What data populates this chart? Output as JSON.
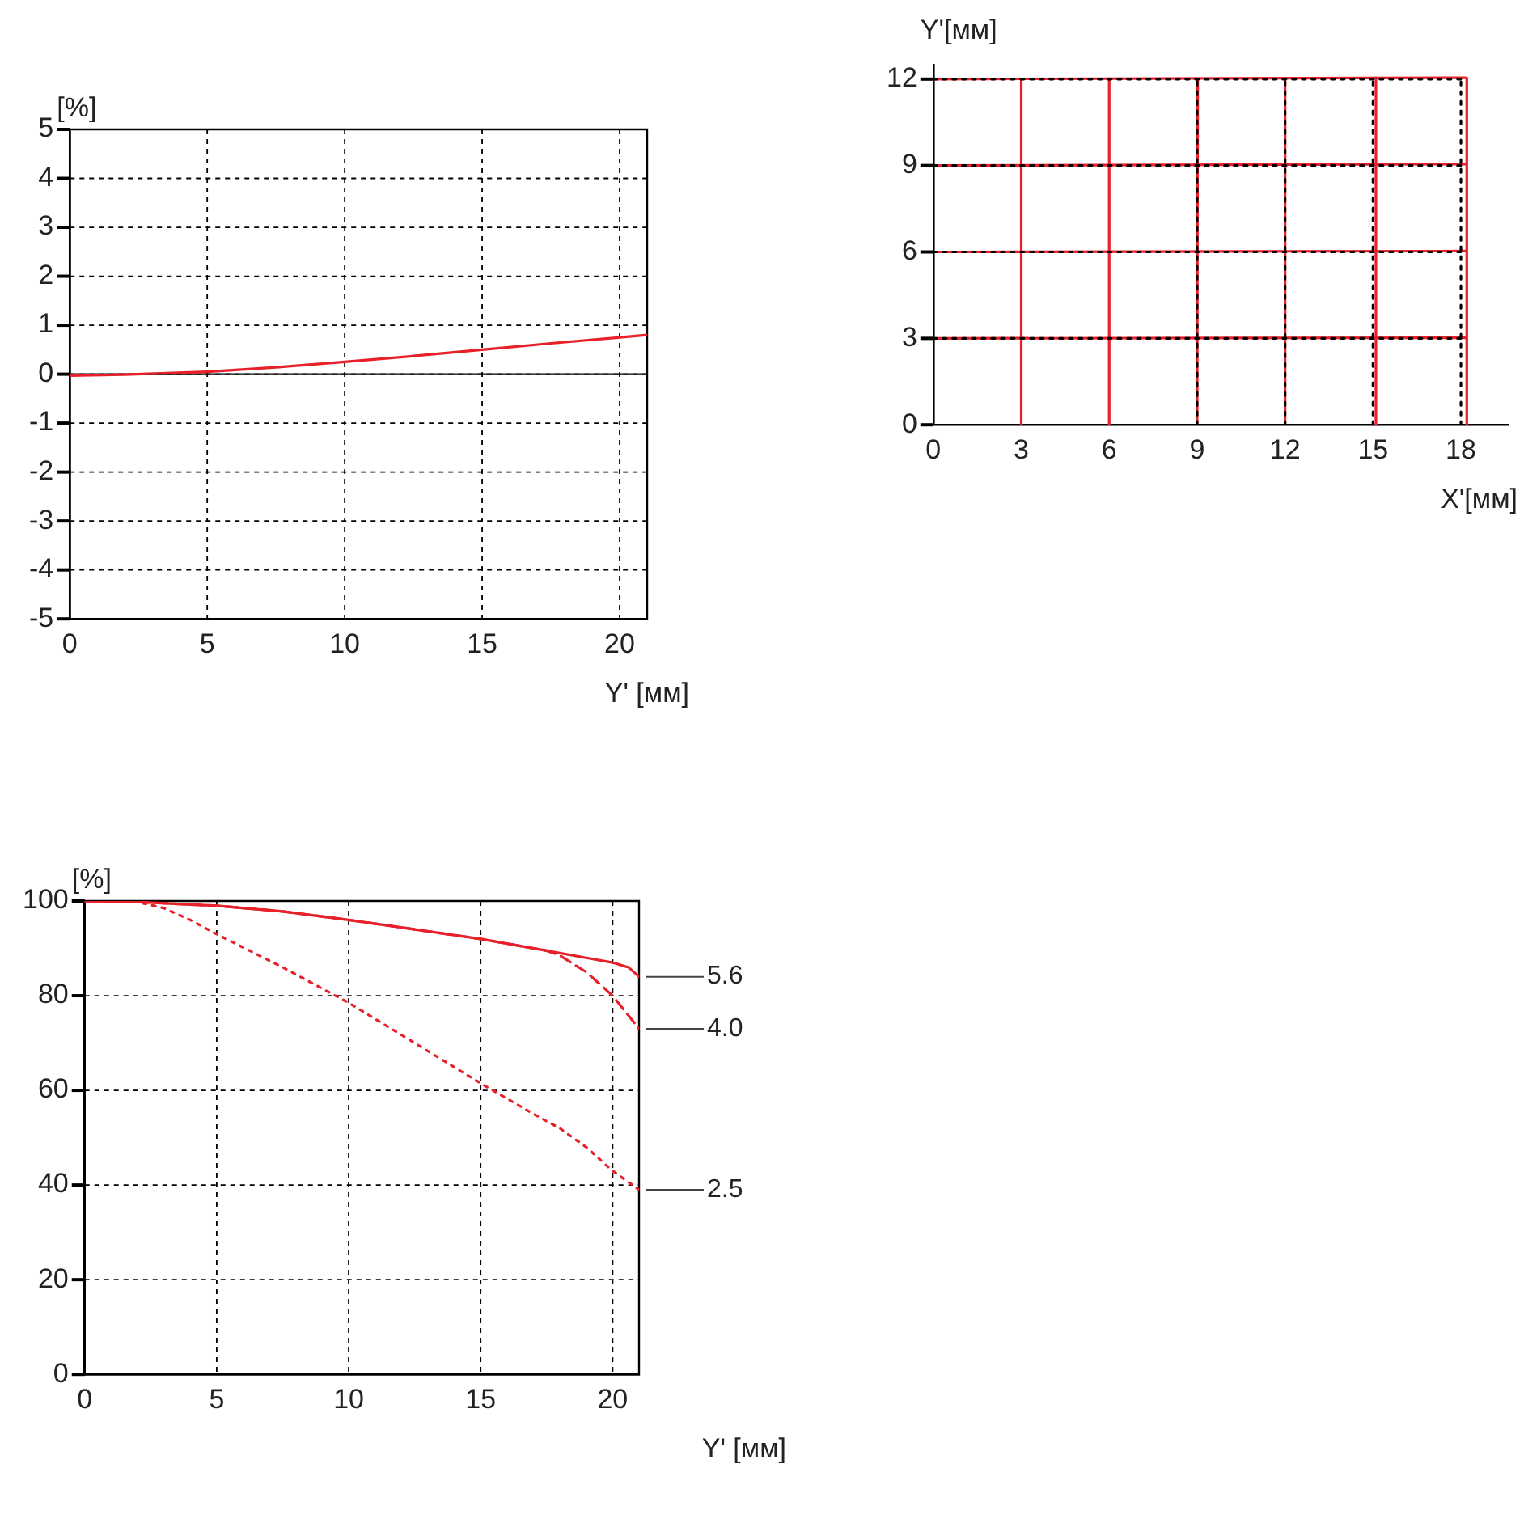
{
  "chart_data": [
    {
      "type": "line",
      "xlabel": "Y' [мм]",
      "ylabel": "[%]",
      "x": [
        0,
        2,
        5,
        7.5,
        10,
        12.5,
        15,
        17.5,
        20,
        21
      ],
      "values": [
        -0.03,
        -0.01,
        0.05,
        0.14,
        0.25,
        0.37,
        0.5,
        0.63,
        0.75,
        0.8
      ],
      "color": "#e8202a",
      "xlim": [
        0,
        21
      ],
      "ylim": [
        -5,
        5
      ],
      "xticks": [
        0,
        5,
        10,
        15,
        20
      ],
      "yticks": [
        -5,
        -4,
        -3,
        -2,
        -1,
        0,
        1,
        2,
        3,
        4,
        5
      ],
      "grid": true,
      "legend": false,
      "line_style": "solid",
      "marker": "none",
      "ref_lines": [
        {
          "axis": "y",
          "value": 0,
          "color": "#000000",
          "line_style": "solid"
        }
      ]
    },
    {
      "type": "line",
      "xlabel": "X'[мм]",
      "ylabel": "Y'[мм]",
      "xlim": [
        0,
        19.6
      ],
      "ylim": [
        0,
        12.5
      ],
      "xticks": [
        0,
        3,
        6,
        9,
        12,
        15,
        18
      ],
      "yticks": [
        0,
        3,
        6,
        9,
        12
      ],
      "grid": false,
      "legend": false,
      "marker": "none",
      "series": [
        {
          "color": "#000000",
          "line_style": "dotted",
          "x": [
            0,
            18
          ],
          "values": [
            3,
            3
          ]
        },
        {
          "color": "#000000",
          "line_style": "dotted",
          "x": [
            0,
            18
          ],
          "values": [
            6,
            6
          ]
        },
        {
          "color": "#000000",
          "line_style": "dotted",
          "x": [
            0,
            18
          ],
          "values": [
            9,
            9
          ]
        },
        {
          "color": "#000000",
          "line_style": "dotted",
          "x": [
            0,
            18
          ],
          "values": [
            12,
            12
          ]
        },
        {
          "color": "#000000",
          "line_style": "dotted",
          "x": [
            9,
            9
          ],
          "values": [
            0,
            12
          ]
        },
        {
          "color": "#000000",
          "line_style": "dotted",
          "x": [
            12,
            12
          ],
          "values": [
            0,
            12
          ]
        },
        {
          "color": "#000000",
          "line_style": "dotted",
          "x": [
            15,
            15
          ],
          "values": [
            0,
            12
          ]
        },
        {
          "color": "#000000",
          "line_style": "dotted",
          "x": [
            18,
            18
          ],
          "values": [
            0,
            12
          ]
        },
        {
          "color": "#e8202a",
          "line_style": "solid",
          "x": [
            0,
            18.15
          ],
          "values": [
            3,
            3.02
          ]
        },
        {
          "color": "#e8202a",
          "line_style": "solid",
          "x": [
            0,
            18.15
          ],
          "values": [
            6,
            6.03
          ]
        },
        {
          "color": "#e8202a",
          "line_style": "solid",
          "x": [
            0,
            18.15
          ],
          "values": [
            9,
            9.05
          ]
        },
        {
          "color": "#e8202a",
          "line_style": "solid",
          "x": [
            0,
            18.15
          ],
          "values": [
            12,
            12.05
          ]
        },
        {
          "color": "#e8202a",
          "line_style": "solid",
          "x": [
            3,
            3
          ],
          "values": [
            0,
            12
          ]
        },
        {
          "color": "#e8202a",
          "line_style": "solid",
          "x": [
            6,
            6
          ],
          "values": [
            0,
            12
          ]
        },
        {
          "color": "#e8202a",
          "line_style": "solid",
          "x": [
            9,
            9.02
          ],
          "values": [
            0,
            12
          ]
        },
        {
          "color": "#e8202a",
          "line_style": "solid",
          "x": [
            12,
            12
          ],
          "values": [
            0,
            12.02
          ]
        },
        {
          "color": "#e8202a",
          "line_style": "solid",
          "x": [
            15.1,
            15.1
          ],
          "values": [
            0,
            12.05
          ]
        },
        {
          "color": "#e8202a",
          "line_style": "solid",
          "x": [
            18.2,
            18.2
          ],
          "values": [
            0,
            12.05
          ]
        }
      ]
    },
    {
      "type": "line",
      "xlabel": "Y' [мм]",
      "ylabel": "[%]",
      "xlim": [
        0,
        21
      ],
      "ylim": [
        0,
        100
      ],
      "xticks": [
        0,
        5,
        10,
        15,
        20
      ],
      "yticks": [
        0,
        20,
        40,
        60,
        80,
        100
      ],
      "grid": true,
      "legend": false,
      "marker": "none",
      "series": [
        {
          "name": "5.6",
          "color": "#e8202a",
          "line_style": "solid",
          "x": [
            0,
            2,
            5,
            7.5,
            10,
            12.5,
            15,
            17.5,
            19,
            20,
            20.6,
            21
          ],
          "values": [
            100,
            99.8,
            99,
            97.8,
            96,
            94,
            92,
            89.5,
            88,
            87,
            86,
            84
          ]
        },
        {
          "name": "4.0",
          "color": "#e8202a",
          "line_style": "dashed",
          "x": [
            0,
            2,
            5,
            7.5,
            10,
            12.5,
            15,
            17.5,
            18,
            19,
            20,
            21
          ],
          "values": [
            100,
            99.8,
            99,
            97.8,
            96,
            94,
            92,
            89.5,
            88.5,
            85,
            80,
            73
          ]
        },
        {
          "name": "2.5",
          "color": "#e8202a",
          "line_style": "dotted",
          "x": [
            0,
            2,
            3,
            4,
            5,
            7.5,
            10,
            12.5,
            15,
            17,
            18,
            19,
            20,
            21
          ],
          "values": [
            100,
            99.8,
            98.5,
            96,
            93,
            86,
            78.5,
            70,
            61.5,
            55,
            52,
            48,
            43,
            39
          ]
        }
      ]
    }
  ]
}
